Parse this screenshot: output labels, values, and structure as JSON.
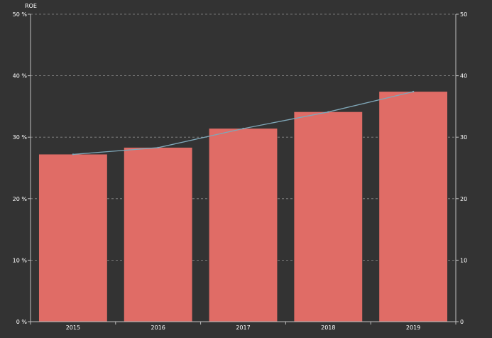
{
  "chart_data": {
    "type": "bar",
    "categories": [
      "2015",
      "2016",
      "2017",
      "2018",
      "2019"
    ],
    "series": [
      {
        "type": "bar",
        "axis": "left",
        "values": [
          27.2,
          28.3,
          31.4,
          34.1,
          37.4
        ]
      },
      {
        "type": "line",
        "axis": "right",
        "values": [
          27.2,
          28.3,
          31.4,
          34.1,
          37.4
        ]
      }
    ],
    "ylabel": "ROE",
    "ylim": [
      0,
      50
    ],
    "y2lim": [
      0,
      50
    ],
    "left_ticks": [
      "0 %",
      "10 %",
      "20 %",
      "30 %",
      "40 %",
      "50 %"
    ],
    "right_ticks": [
      "0",
      "10",
      "20",
      "30",
      "40",
      "50"
    ],
    "grid": true,
    "colors": {
      "background": "#333333",
      "bar": "#E06C66",
      "line": "#7FA7B8",
      "grid": "#8c8c8c",
      "axis": "#bfbfbf",
      "text": "#ffffff"
    }
  }
}
